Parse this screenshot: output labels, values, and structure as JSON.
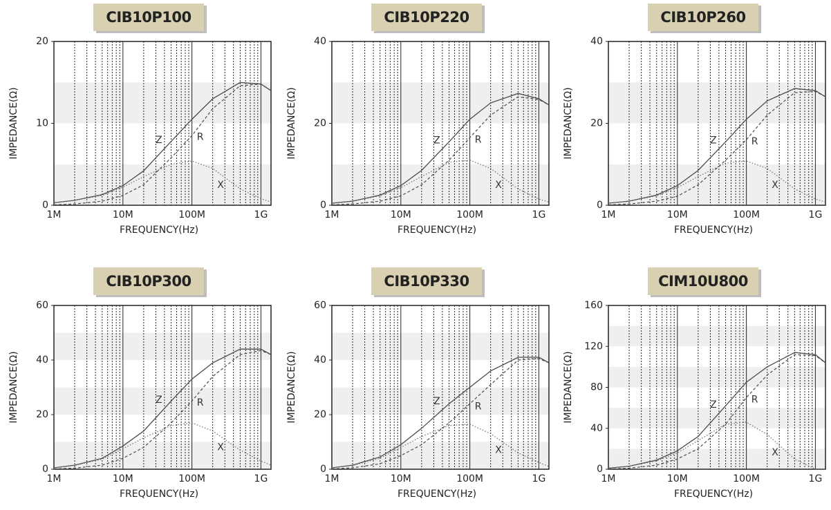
{
  "chart_data": [
    {
      "type": "line",
      "title": "CIB10P100",
      "x_label": "FREQUENCY(Hz)",
      "y_label": "IMPEDANCE(Ω)",
      "xscale": "log",
      "minor_grid": true,
      "bands": true,
      "x": [
        1000000,
        2000000,
        5000000,
        10000000,
        20000000,
        50000000,
        100000000,
        200000000,
        500000000,
        1000000000,
        1400000000
      ],
      "xlim": [
        1000000,
        1400000000
      ],
      "xticks": [
        {
          "value": 1000000,
          "label": "1M"
        },
        {
          "value": 10000000,
          "label": "10M"
        },
        {
          "value": 100000000,
          "label": "100M"
        },
        {
          "value": 1000000000,
          "label": "1G"
        }
      ],
      "ylim": [
        0,
        20
      ],
      "yticks": [
        0,
        10,
        20
      ],
      "series": [
        {
          "name": "Z",
          "color": "#4a4a4a",
          "style": "solid",
          "values": [
            0.3,
            0.6,
            1.3,
            2.4,
            4.2,
            7.8,
            10.5,
            13,
            15,
            14.8,
            14
          ]
        },
        {
          "name": "R",
          "color": "#4a4a4a",
          "style": "dashed",
          "values": [
            0.05,
            0.15,
            0.5,
            1.2,
            2.5,
            5.8,
            8.5,
            11.8,
            14.6,
            14.8,
            14
          ]
        },
        {
          "name": "X",
          "color": "#6a6a6a",
          "style": "dotted",
          "values": [
            0.3,
            0.6,
            1.2,
            2.2,
            3.5,
            5,
            5.4,
            4.5,
            2,
            0.8,
            0.4
          ]
        }
      ]
    },
    {
      "type": "line",
      "title": "CIB10P220",
      "x_label": "FREQUENCY(Hz)",
      "y_label": "IMPEDANCE(Ω)",
      "xscale": "log",
      "minor_grid": true,
      "bands": true,
      "x": [
        1000000,
        2000000,
        5000000,
        10000000,
        20000000,
        50000000,
        100000000,
        200000000,
        500000000,
        1000000000,
        1400000000
      ],
      "xlim": [
        1000000,
        1400000000
      ],
      "xticks": [
        {
          "value": 1000000,
          "label": "1M"
        },
        {
          "value": 10000000,
          "label": "10M"
        },
        {
          "value": 100000000,
          "label": "100M"
        },
        {
          "value": 1000000000,
          "label": "1G"
        }
      ],
      "ylim": [
        0,
        40
      ],
      "yticks": [
        0,
        20,
        40
      ],
      "series": [
        {
          "name": "Z",
          "color": "#4a4a4a",
          "style": "solid",
          "values": [
            0.5,
            1,
            2.5,
            4.8,
            8.5,
            15.5,
            21,
            25,
            27.3,
            26,
            24.5
          ]
        },
        {
          "name": "R",
          "color": "#4a4a4a",
          "style": "dashed",
          "values": [
            0.1,
            0.3,
            1,
            2.3,
            5,
            11,
            16.5,
            22,
            26.5,
            25.8,
            24.5
          ]
        },
        {
          "name": "X",
          "color": "#6a6a6a",
          "style": "dotted",
          "values": [
            0.5,
            1,
            2.3,
            4.3,
            7,
            10.5,
            11,
            9,
            4,
            1.5,
            0.8
          ]
        }
      ]
    },
    {
      "type": "line",
      "title": "CIB10P260",
      "x_label": "FREQUENCY(Hz)",
      "y_label": "IMPEDANCE(Ω)",
      "xscale": "log",
      "minor_grid": true,
      "bands": true,
      "x": [
        1000000,
        2000000,
        5000000,
        10000000,
        20000000,
        50000000,
        100000000,
        200000000,
        500000000,
        1000000000,
        1400000000
      ],
      "xlim": [
        1000000,
        1400000000
      ],
      "xticks": [
        {
          "value": 1000000,
          "label": "1M"
        },
        {
          "value": 10000000,
          "label": "10M"
        },
        {
          "value": 100000000,
          "label": "100M"
        },
        {
          "value": 1000000000,
          "label": "1G"
        }
      ],
      "ylim": [
        0,
        40
      ],
      "yticks": [
        0,
        20,
        40
      ],
      "series": [
        {
          "name": "Z",
          "color": "#4a4a4a",
          "style": "solid",
          "values": [
            0.5,
            1,
            2.5,
            4.8,
            8.5,
            15.5,
            21,
            25.5,
            28.5,
            28,
            26.5
          ]
        },
        {
          "name": "R",
          "color": "#4a4a4a",
          "style": "dashed",
          "values": [
            0.1,
            0.3,
            1,
            2.2,
            5,
            11,
            16,
            22,
            27.5,
            27.8,
            26.5
          ]
        },
        {
          "name": "X",
          "color": "#6a6a6a",
          "style": "dotted",
          "values": [
            0.5,
            1,
            2.3,
            4.3,
            7,
            10.3,
            10.8,
            9,
            4,
            1.5,
            0.8
          ]
        }
      ]
    },
    {
      "type": "line",
      "title": "CIB10P300",
      "x_label": "FREQUENCY(Hz)",
      "y_label": "IMPEDANCE(Ω)",
      "xscale": "log",
      "minor_grid": true,
      "bands": true,
      "x": [
        1000000,
        2000000,
        5000000,
        10000000,
        20000000,
        50000000,
        100000000,
        200000000,
        500000000,
        1000000000,
        1400000000
      ],
      "xlim": [
        1000000,
        1400000000
      ],
      "xticks": [
        {
          "value": 1000000,
          "label": "1M"
        },
        {
          "value": 10000000,
          "label": "10M"
        },
        {
          "value": 100000000,
          "label": "100M"
        },
        {
          "value": 1000000000,
          "label": "1G"
        }
      ],
      "ylim": [
        0,
        60
      ],
      "yticks": [
        0,
        20,
        40,
        60
      ],
      "series": [
        {
          "name": "Z",
          "color": "#4a4a4a",
          "style": "solid",
          "values": [
            0.5,
            1.5,
            4,
            8.5,
            14,
            25,
            33,
            39,
            44,
            44,
            42
          ]
        },
        {
          "name": "R",
          "color": "#4a4a4a",
          "style": "dashed",
          "values": [
            0.1,
            0.4,
            1.5,
            4,
            8,
            17,
            25,
            34,
            42,
            43.5,
            42
          ]
        },
        {
          "name": "X",
          "color": "#6a6a6a",
          "style": "dotted",
          "values": [
            0.5,
            1.4,
            3.7,
            7.5,
            11.5,
            16,
            17,
            14,
            7,
            3,
            1.5
          ]
        }
      ]
    },
    {
      "type": "line",
      "title": "CIB10P330",
      "x_label": "FREQUENCY(Hz)",
      "y_label": "IMPEDANCE(Ω)",
      "xscale": "log",
      "minor_grid": true,
      "bands": true,
      "x": [
        1000000,
        2000000,
        5000000,
        10000000,
        20000000,
        50000000,
        100000000,
        200000000,
        500000000,
        1000000000,
        1400000000
      ],
      "xlim": [
        1000000,
        1400000000
      ],
      "xticks": [
        {
          "value": 1000000,
          "label": "1M"
        },
        {
          "value": 10000000,
          "label": "10M"
        },
        {
          "value": 100000000,
          "label": "100M"
        },
        {
          "value": 1000000000,
          "label": "1G"
        }
      ],
      "ylim": [
        0,
        60
      ],
      "yticks": [
        0,
        20,
        40,
        60
      ],
      "series": [
        {
          "name": "Z",
          "color": "#4a4a4a",
          "style": "solid",
          "values": [
            0.5,
            1.5,
            4.5,
            9,
            15,
            24,
            30,
            36,
            41,
            41,
            39
          ]
        },
        {
          "name": "R",
          "color": "#4a4a4a",
          "style": "dashed",
          "values": [
            0.1,
            0.5,
            2,
            5,
            9,
            17,
            24,
            31,
            40,
            40.5,
            39
          ]
        },
        {
          "name": "X",
          "color": "#6a6a6a",
          "style": "dotted",
          "values": [
            0.5,
            1.4,
            4,
            8,
            12,
            16,
            16.5,
            13,
            6,
            2.5,
            1
          ]
        }
      ]
    },
    {
      "type": "line",
      "title": "CIM10U800",
      "x_label": "FREQUENCY(Hz)",
      "y_label": "IMPEDANCE(Ω)",
      "xscale": "log",
      "minor_grid": true,
      "bands": true,
      "x": [
        1000000,
        2000000,
        5000000,
        10000000,
        20000000,
        50000000,
        100000000,
        200000000,
        500000000,
        1000000000,
        1400000000
      ],
      "xlim": [
        1000000,
        1400000000
      ],
      "xticks": [
        {
          "value": 1000000,
          "label": "1M"
        },
        {
          "value": 10000000,
          "label": "10M"
        },
        {
          "value": 100000000,
          "label": "100M"
        },
        {
          "value": 1000000000,
          "label": "1G"
        }
      ],
      "ylim": [
        0,
        160
      ],
      "yticks": [
        0,
        40,
        80,
        120,
        160
      ],
      "series": [
        {
          "name": "Z",
          "color": "#4a4a4a",
          "style": "solid",
          "values": [
            1,
            3,
            9,
            18,
            32,
            62,
            85,
            100,
            114,
            112,
            104
          ]
        },
        {
          "name": "R",
          "color": "#4a4a4a",
          "style": "dashed",
          "values": [
            0.2,
            1,
            4,
            10,
            20,
            44,
            70,
            92,
            112,
            111,
            104
          ]
        },
        {
          "name": "X",
          "color": "#6a6a6a",
          "style": "dotted",
          "values": [
            1,
            3,
            8,
            16,
            28,
            44,
            46,
            34,
            10,
            0,
            0
          ]
        }
      ]
    }
  ]
}
